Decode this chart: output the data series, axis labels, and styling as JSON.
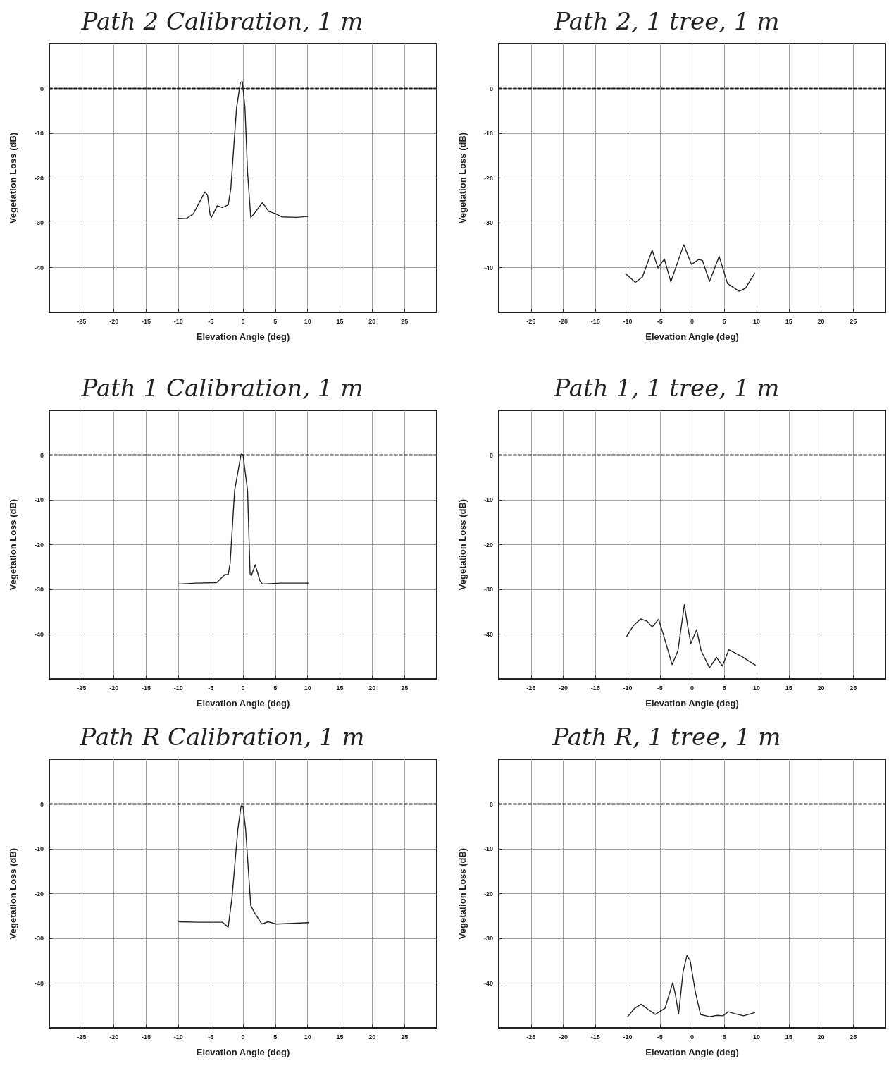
{
  "chart_data": [
    {
      "type": "line",
      "title": "Path 2 Calibration, 1 m",
      "xlabel": "Elevation Angle (deg)",
      "ylabel": "Vegetation Loss (dB)",
      "xlim": [
        -30,
        30
      ],
      "ylim": [
        -50,
        10
      ],
      "xticks": [
        -25,
        -20,
        -15,
        -10,
        -5,
        0,
        5,
        10,
        15,
        20,
        25
      ],
      "yticks": [
        -40,
        -30,
        -20,
        -10,
        0
      ],
      "grid": true,
      "ref_lines": [
        {
          "axis": "y",
          "value": 0,
          "line_style": "dashed"
        }
      ],
      "series": [
        {
          "color": "#222222",
          "x": [
            -10.1,
            -8.8,
            -7.7,
            -5.9,
            -5.5,
            -5.1,
            -4.9,
            -4.7,
            -4.0,
            -3.2,
            -2.3,
            -1.9,
            -1.0,
            -0.4,
            -0.1,
            0.3,
            0.7,
            1.2,
            1.6,
            3.0,
            4.0,
            4.9,
            6.0,
            8.3,
            10.0
          ],
          "values": [
            -29.0,
            -29.1,
            -28.0,
            -23.1,
            -23.8,
            -28.2,
            -28.8,
            -28.3,
            -26.2,
            -26.6,
            -26.0,
            -22.5,
            -4.3,
            1.4,
            1.5,
            -4.3,
            -18.7,
            -28.8,
            -28.2,
            -25.5,
            -27.5,
            -27.9,
            -28.7,
            -28.8,
            -28.6
          ]
        }
      ]
    },
    {
      "type": "line",
      "title": "Path 2, 1 tree, 1 m",
      "xlabel": "Elevation Angle (deg)",
      "ylabel": "Vegetation Loss (dB)",
      "xlim": [
        -30,
        30
      ],
      "ylim": [
        -50,
        10
      ],
      "xticks": [
        -25,
        -20,
        -15,
        -10,
        -5,
        0,
        5,
        10,
        15,
        20,
        25
      ],
      "yticks": [
        -40,
        -30,
        -20,
        -10,
        0
      ],
      "grid": true,
      "ref_lines": [
        {
          "axis": "y",
          "value": 0,
          "line_style": "dashed"
        }
      ],
      "series": [
        {
          "color": "#222222",
          "x": [
            -10.3,
            -8.8,
            -7.7,
            -6.2,
            -5.3,
            -4.3,
            -3.3,
            -1.3,
            -0.1,
            1.0,
            1.6,
            2.7,
            4.2,
            5.5,
            7.3,
            8.3,
            9.7
          ],
          "values": [
            -41.4,
            -43.3,
            -42.1,
            -36.1,
            -40.1,
            -38.1,
            -43.2,
            -34.9,
            -39.3,
            -38.2,
            -38.4,
            -43.1,
            -37.5,
            -43.6,
            -45.3,
            -44.6,
            -41.3
          ]
        }
      ]
    },
    {
      "type": "line",
      "title": "Path 1 Calibration, 1 m",
      "xlabel": "Elevation Angle (deg)",
      "ylabel": "Vegetation Loss (dB)",
      "xlim": [
        -30,
        30
      ],
      "ylim": [
        -50,
        10
      ],
      "xticks": [
        -25,
        -20,
        -15,
        -10,
        -5,
        0,
        5,
        10,
        15,
        20,
        25
      ],
      "yticks": [
        -40,
        -30,
        -20,
        -10,
        0
      ],
      "grid": true,
      "ref_lines": [
        {
          "axis": "y",
          "value": 0,
          "line_style": "dashed"
        }
      ],
      "series": [
        {
          "color": "#222222",
          "x": [
            -10.0,
            -7.2,
            -4.1,
            -2.8,
            -2.3,
            -2.0,
            -1.3,
            -0.3,
            0.0,
            0.7,
            1.1,
            1.3,
            1.9,
            2.6,
            3.0,
            5.9,
            10.1
          ],
          "values": [
            -28.8,
            -28.6,
            -28.5,
            -26.7,
            -26.7,
            -24.2,
            -7.9,
            0.2,
            0.0,
            -7.9,
            -26.7,
            -26.9,
            -24.5,
            -28.0,
            -28.8,
            -28.6,
            -28.6
          ]
        }
      ]
    },
    {
      "type": "line",
      "title": "Path 1, 1 tree, 1 m",
      "xlabel": "Elevation Angle (deg)",
      "ylabel": "Vegetation Loss (dB)",
      "xlim": [
        -30,
        30
      ],
      "ylim": [
        -50,
        10
      ],
      "xticks": [
        -25,
        -20,
        -15,
        -10,
        -5,
        0,
        5,
        10,
        15,
        20,
        25
      ],
      "yticks": [
        -40,
        -30,
        -20,
        -10,
        0
      ],
      "grid": true,
      "ref_lines": [
        {
          "axis": "y",
          "value": 0,
          "line_style": "dashed"
        }
      ],
      "series": [
        {
          "color": "#222222",
          "x": [
            -10.2,
            -9.1,
            -8.0,
            -7.0,
            -6.2,
            -5.2,
            -4.5,
            -3.1,
            -2.2,
            -1.2,
            -0.7,
            -0.2,
            0.7,
            1.4,
            2.7,
            3.8,
            4.7,
            5.7,
            7.6,
            9.8
          ],
          "values": [
            -40.6,
            -38.1,
            -36.6,
            -37.1,
            -38.4,
            -36.7,
            -39.9,
            -46.8,
            -43.7,
            -33.4,
            -38.1,
            -42.1,
            -39.0,
            -43.7,
            -47.5,
            -45.2,
            -47.1,
            -43.5,
            -44.9,
            -46.9
          ]
        }
      ]
    },
    {
      "type": "line",
      "title": "Path R Calibration, 1 m",
      "xlabel": "Elevation Angle (deg)",
      "ylabel": "Vegetation Loss (dB)",
      "xlim": [
        -30,
        30
      ],
      "ylim": [
        -50,
        10
      ],
      "xticks": [
        -25,
        -20,
        -15,
        -10,
        -5,
        0,
        5,
        10,
        15,
        20,
        25
      ],
      "yticks": [
        -40,
        -30,
        -20,
        -10,
        0
      ],
      "grid": true,
      "ref_lines": [
        {
          "axis": "y",
          "value": 0,
          "line_style": "dashed"
        }
      ],
      "series": [
        {
          "color": "#222222",
          "x": [
            -9.9,
            -6.9,
            -3.2,
            -2.3,
            -1.7,
            -0.8,
            -0.3,
            0.0,
            0.4,
            1.2,
            1.8,
            2.9,
            3.9,
            5.1,
            10.1
          ],
          "values": [
            -26.3,
            -26.4,
            -26.4,
            -27.5,
            -20.8,
            -5.6,
            -0.4,
            -0.5,
            -5.6,
            -22.7,
            -24.3,
            -26.8,
            -26.3,
            -26.8,
            -26.5
          ]
        }
      ]
    },
    {
      "type": "line",
      "title": "Path R, 1 tree, 1 m",
      "xlabel": "Elevation Angle (deg)",
      "ylabel": "Vegetation Loss (dB)",
      "xlim": [
        -30,
        30
      ],
      "ylim": [
        -50,
        10
      ],
      "xticks": [
        -25,
        -20,
        -15,
        -10,
        -5,
        0,
        5,
        10,
        15,
        20,
        25
      ],
      "yticks": [
        -40,
        -30,
        -20,
        -10,
        0
      ],
      "grid": true,
      "ref_lines": [
        {
          "axis": "y",
          "value": 0,
          "line_style": "dashed"
        }
      ],
      "series": [
        {
          "color": "#222222",
          "x": [
            -10.0,
            -8.9,
            -7.9,
            -6.8,
            -5.7,
            -4.2,
            -3.0,
            -2.6,
            -2.1,
            -1.4,
            -0.8,
            -0.3,
            0.5,
            1.3,
            2.7,
            3.9,
            4.8,
            5.6,
            6.5,
            8.0,
            9.7
          ],
          "values": [
            -47.5,
            -45.6,
            -44.7,
            -45.9,
            -47.0,
            -45.6,
            -39.9,
            -42.5,
            -46.9,
            -37.5,
            -33.8,
            -35.0,
            -41.9,
            -47.0,
            -47.5,
            -47.2,
            -47.3,
            -46.4,
            -46.8,
            -47.3,
            -46.6
          ]
        }
      ]
    }
  ]
}
